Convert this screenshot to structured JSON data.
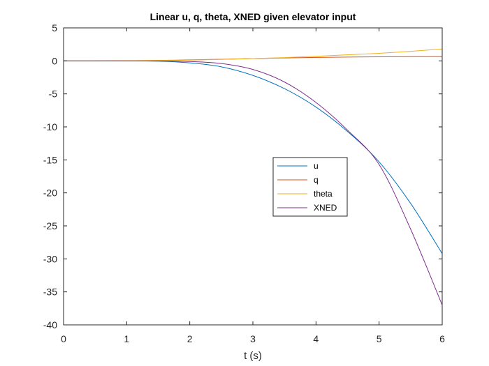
{
  "chart_data": {
    "type": "line",
    "title": "Linear u, q, theta, XNED given elevator input",
    "xlabel": "t (s)",
    "ylabel": "",
    "xlim": [
      0,
      6
    ],
    "ylim": [
      -40,
      5
    ],
    "xticks": [
      0,
      1,
      2,
      3,
      4,
      5,
      6
    ],
    "yticks": [
      5,
      0,
      -5,
      -10,
      -15,
      -20,
      -25,
      -30,
      -35,
      -40
    ],
    "grid": false,
    "legend": "center-right",
    "series": [
      {
        "name": "u",
        "color": "#0072BD",
        "x": [
          0,
          0.5,
          1,
          1.5,
          2,
          2.5,
          3,
          3.5,
          4,
          4.5,
          5,
          5.5,
          6
        ],
        "y": [
          0,
          0,
          0,
          -0.05,
          -0.3,
          -0.9,
          -2.2,
          -4.2,
          -7,
          -10.7,
          -15.3,
          -21.6,
          -29.2
        ]
      },
      {
        "name": "q",
        "color": "#D95319",
        "x": [
          0,
          0.5,
          1,
          1.5,
          2,
          2.5,
          3,
          3.5,
          4,
          4.5,
          5,
          5.5,
          6
        ],
        "y": [
          0,
          0,
          0.02,
          0.07,
          0.15,
          0.25,
          0.35,
          0.45,
          0.52,
          0.58,
          0.62,
          0.64,
          0.65
        ]
      },
      {
        "name": "theta",
        "color": "#EDB120",
        "x": [
          0,
          0.5,
          1,
          1.5,
          2,
          2.5,
          3,
          3.5,
          4,
          4.5,
          5,
          5.5,
          6
        ],
        "y": [
          0,
          0,
          0.01,
          0.05,
          0.12,
          0.22,
          0.35,
          0.5,
          0.7,
          0.92,
          1.15,
          1.45,
          1.8
        ]
      },
      {
        "name": "XNED",
        "color": "#7E2F8E",
        "x": [
          0,
          0.5,
          1,
          1.5,
          2,
          2.5,
          3,
          3.5,
          4,
          4.5,
          5,
          5.5,
          6
        ],
        "y": [
          0,
          0,
          0,
          -0.02,
          -0.1,
          -0.4,
          -1.3,
          -3.2,
          -6.3,
          -10.5,
          -15.7,
          -25.5,
          -37
        ]
      }
    ]
  }
}
